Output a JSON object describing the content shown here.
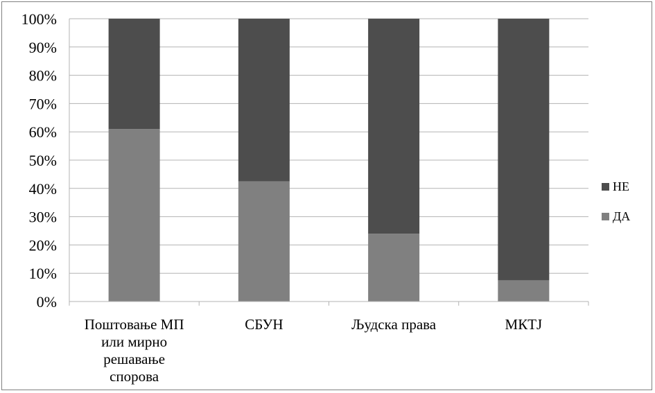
{
  "chart_data": {
    "type": "bar",
    "stacked": true,
    "percent": true,
    "categories": [
      [
        "Поштовање МП",
        "или мирно",
        "решавање",
        "спорова"
      ],
      [
        "СБУН"
      ],
      [
        "Људска права"
      ],
      [
        "МКТЈ"
      ]
    ],
    "series": [
      {
        "name": "ДА",
        "color": "#808080",
        "values": [
          61,
          42.5,
          24,
          7.5
        ]
      },
      {
        "name": "НЕ",
        "color": "#4d4d4d",
        "values": [
          39,
          57.5,
          76,
          92.5
        ]
      }
    ],
    "ylim": [
      0,
      100
    ],
    "yticks": [
      "0%",
      "10%",
      "20%",
      "30%",
      "40%",
      "50%",
      "60%",
      "70%",
      "80%",
      "90%",
      "100%"
    ],
    "grid": true,
    "gridColor": "#b3b3b3",
    "legend": "right",
    "legendOrder": [
      "НЕ",
      "ДА"
    ]
  }
}
